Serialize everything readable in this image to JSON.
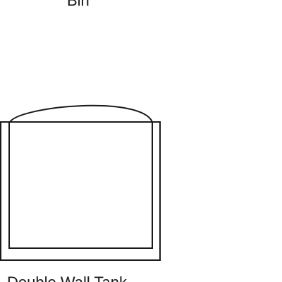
{
  "labels": {
    "top": "Bin",
    "bottom": "Double Wall Tank"
  },
  "colors": {
    "background": "#ffffff",
    "stroke": "#1a1a1a"
  }
}
